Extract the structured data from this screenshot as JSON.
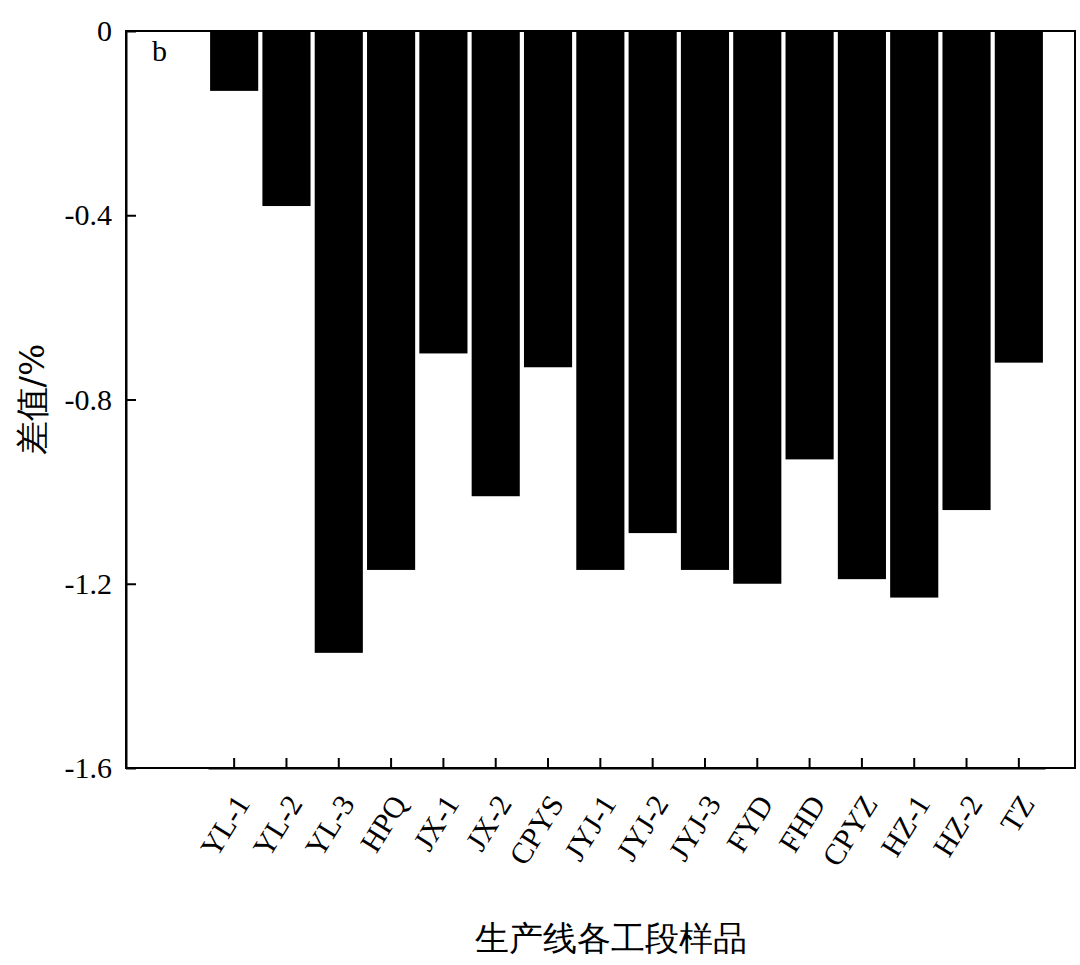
{
  "chart_data": {
    "type": "bar",
    "panel_label": "b",
    "x_label": "生产线各工段样品",
    "y_label": "差值/%",
    "categories": [
      "YL-1",
      "YL-2",
      "YL-3",
      "HPQ",
      "JX-1",
      "JX-2",
      "CPYS",
      "JYJ-1",
      "JYJ-2",
      "JYJ-3",
      "FYD",
      "FHD",
      "CPYZ",
      "HZ-1",
      "HZ-2",
      "TZ"
    ],
    "values": [
      -0.13,
      -0.38,
      -1.35,
      -1.17,
      -0.7,
      -1.01,
      -0.73,
      -1.17,
      -1.09,
      -1.17,
      -1.2,
      -0.93,
      -1.19,
      -1.23,
      -1.04,
      -0.72
    ],
    "color": "#000000",
    "ylim": [
      -1.6,
      0
    ],
    "yticks": [
      0,
      -0.4,
      -0.8,
      -1.2,
      -1.6
    ],
    "grid": false
  }
}
